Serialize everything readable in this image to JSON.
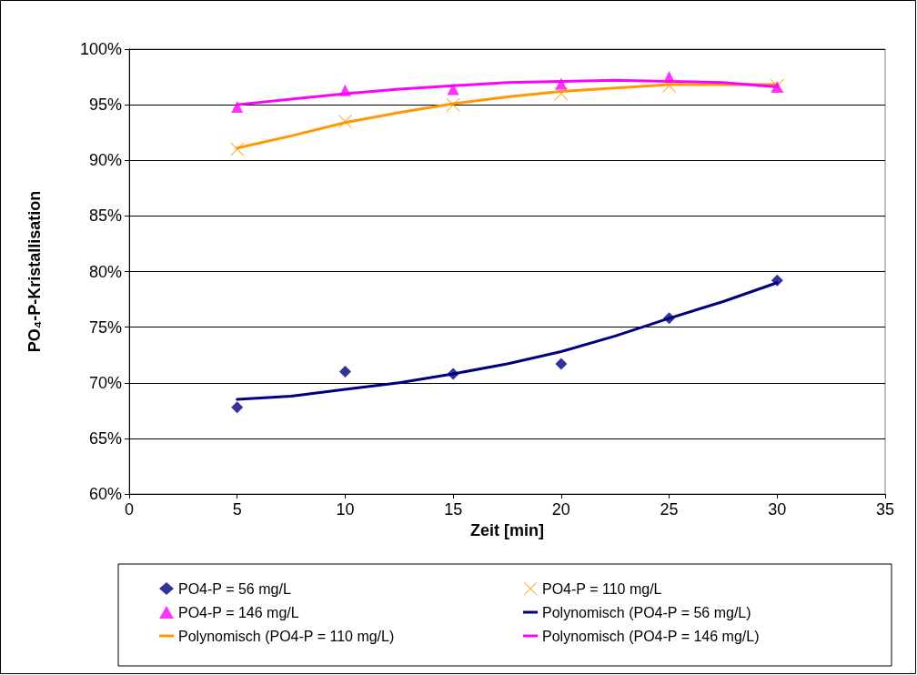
{
  "chart_data": {
    "type": "scatter",
    "xlabel": "Zeit [min]",
    "ylabel": "PO₄-P-Kristallisation",
    "xlim": [
      0,
      35
    ],
    "xticks": [
      0,
      5,
      10,
      15,
      20,
      25,
      30,
      35
    ],
    "ylim": [
      60,
      100
    ],
    "yticks": [
      {
        "value": 60,
        "label": "60%"
      },
      {
        "value": 65,
        "label": "65%"
      },
      {
        "value": 70,
        "label": "70%"
      },
      {
        "value": 75,
        "label": "75%"
      },
      {
        "value": 80,
        "label": "80%"
      },
      {
        "value": 85,
        "label": "85%"
      },
      {
        "value": 90,
        "label": "90%"
      },
      {
        "value": 95,
        "label": "95%"
      },
      {
        "value": 100,
        "label": "100%"
      }
    ],
    "grid": "y",
    "legend": "bottom",
    "x": [
      5,
      10,
      15,
      20,
      25,
      30
    ],
    "series": [
      {
        "name": "PO4-P = 56 mg/L",
        "type": "scatter",
        "marker": "diamond",
        "color": "#000080",
        "values": [
          67.8,
          71.0,
          70.8,
          71.7,
          75.8,
          79.2
        ]
      },
      {
        "name": "PO4-P = 110 mg/L",
        "type": "scatter",
        "marker": "cross",
        "color": "#ff9900",
        "values": [
          91.0,
          93.5,
          95.0,
          96.0,
          96.7,
          96.7
        ]
      },
      {
        "name": "PO4-P = 146 mg/L",
        "type": "scatter",
        "marker": "triangle",
        "color": "#ff00ff",
        "values": [
          94.8,
          96.3,
          96.4,
          96.9,
          97.5,
          96.6
        ]
      },
      {
        "name": "Polynomisch (PO4-P = 56 mg/L)",
        "type": "line",
        "color": "#000080",
        "x": [
          5,
          7.5,
          10,
          12.5,
          15,
          17.5,
          20,
          22.5,
          25,
          27.5,
          30
        ],
        "values": [
          68.5,
          68.8,
          69.4,
          70.0,
          70.8,
          71.7,
          72.8,
          74.2,
          75.8,
          77.3,
          79.0
        ]
      },
      {
        "name": "Polynomisch (PO4-P = 110 mg/L)",
        "type": "line",
        "color": "#ff9900",
        "x": [
          5,
          7.5,
          10,
          12.5,
          15,
          17.5,
          20,
          22.5,
          25,
          27.5,
          30
        ],
        "values": [
          91.1,
          92.2,
          93.4,
          94.3,
          95.1,
          95.7,
          96.2,
          96.5,
          96.8,
          96.8,
          96.8
        ]
      },
      {
        "name": "Polynomisch (PO4-P = 146 mg/L)",
        "type": "line",
        "color": "#ff00ff",
        "x": [
          5,
          7.5,
          10,
          12.5,
          15,
          17.5,
          20,
          22.5,
          25,
          27.5,
          30
        ],
        "values": [
          95.0,
          95.5,
          96.0,
          96.4,
          96.7,
          97.0,
          97.1,
          97.2,
          97.1,
          97.0,
          96.6
        ]
      }
    ]
  }
}
